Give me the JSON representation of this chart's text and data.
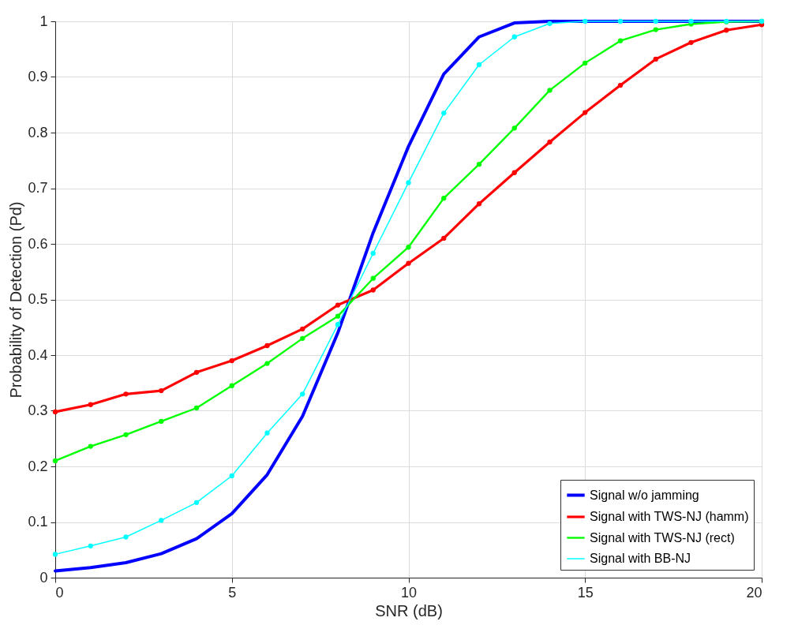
{
  "chart_data": {
    "type": "line",
    "xlabel": "SNR (dB)",
    "ylabel": "Probability of Detection (Pd)",
    "x": [
      0,
      1,
      2,
      3,
      4,
      5,
      6,
      7,
      8,
      9,
      10,
      11,
      12,
      13,
      14,
      15,
      16,
      17,
      18,
      19,
      20
    ],
    "series": [
      {
        "name": "Signal w/o jamming",
        "color": "#0000ff",
        "marker": "none",
        "values": [
          0.012,
          0.018,
          0.027,
          0.043,
          0.07,
          0.115,
          0.185,
          0.29,
          0.44,
          0.62,
          0.775,
          0.905,
          0.972,
          0.997,
          1,
          1,
          1,
          1,
          1,
          1,
          1
        ]
      },
      {
        "name": "Signal with TWS-NJ (hamm)",
        "color": "#ff0000",
        "marker": "circle",
        "values": [
          0.298,
          0.311,
          0.33,
          0.336,
          0.369,
          0.39,
          0.417,
          0.447,
          0.49,
          0.517,
          0.565,
          0.61,
          0.672,
          0.728,
          0.783,
          0.836,
          0.885,
          0.932,
          0.962,
          0.984,
          0.994
        ]
      },
      {
        "name": "Signal with TWS-NJ (rect)",
        "color": "#00ff00",
        "marker": "circle",
        "values": [
          0.21,
          0.236,
          0.257,
          0.281,
          0.305,
          0.345,
          0.385,
          0.43,
          0.47,
          0.538,
          0.594,
          0.682,
          0.743,
          0.808,
          0.876,
          0.925,
          0.965,
          0.985,
          0.995,
          0.999,
          1
        ]
      },
      {
        "name": "Signal with BB-NJ",
        "color": "#00ffff",
        "marker": "circle",
        "values": [
          0.042,
          0.057,
          0.073,
          0.103,
          0.135,
          0.183,
          0.26,
          0.33,
          0.455,
          0.583,
          0.71,
          0.835,
          0.922,
          0.972,
          0.996,
          1,
          1,
          1,
          1,
          1,
          1
        ]
      }
    ],
    "xlim": [
      0,
      20
    ],
    "xticks": [
      0,
      5,
      10,
      15,
      20
    ],
    "ylim": [
      0,
      1
    ],
    "yticks": [
      0,
      0.1,
      0.2,
      0.3,
      0.4,
      0.5,
      0.6,
      0.7,
      0.8,
      0.9,
      1
    ],
    "grid": true,
    "legend": "bottom right"
  }
}
